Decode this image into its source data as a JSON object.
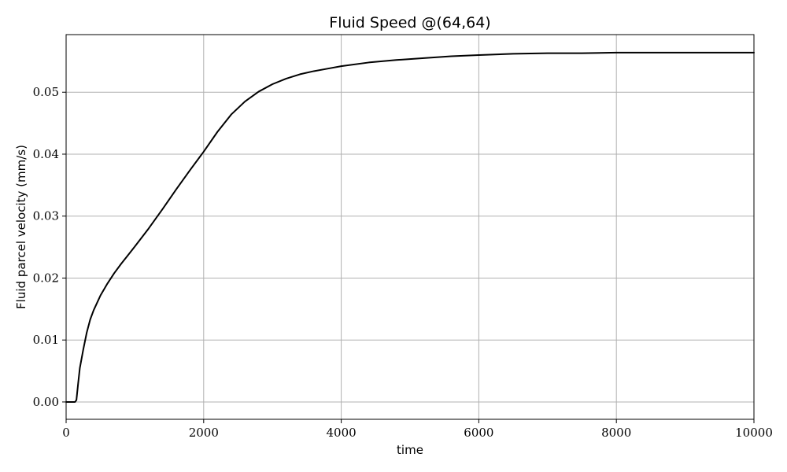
{
  "chart_data": {
    "type": "line",
    "title": "Fluid Speed @(64,64)",
    "xlabel": "time",
    "ylabel": "Fluid parcel velocity (mm/s)",
    "xlim": [
      0,
      10000
    ],
    "ylim": [
      -0.0028,
      0.0593
    ],
    "grid": true,
    "xticks": [
      0,
      2000,
      4000,
      6000,
      8000,
      10000
    ],
    "xtick_labels": [
      "0",
      "2000",
      "4000",
      "6000",
      "8000",
      "10000"
    ],
    "yticks": [
      0.0,
      0.01,
      0.02,
      0.03,
      0.04,
      0.05
    ],
    "ytick_labels": [
      "0.00",
      "0.01",
      "0.02",
      "0.03",
      "0.04",
      "0.05"
    ],
    "series": [
      {
        "color": "#000000",
        "x": [
          0,
          100,
          130,
          150,
          175,
          200,
          250,
          300,
          350,
          400,
          500,
          600,
          700,
          800,
          900,
          1000,
          1200,
          1400,
          1600,
          1800,
          2000,
          2200,
          2400,
          2600,
          2800,
          3000,
          3200,
          3400,
          3600,
          3800,
          4000,
          4400,
          4800,
          5200,
          5600,
          6000,
          6500,
          7000,
          7500,
          8000,
          8500,
          9000,
          9500,
          10000
        ],
        "y": [
          0.0,
          0.0,
          0.0,
          0.0003,
          0.003,
          0.0055,
          0.0085,
          0.0112,
          0.0133,
          0.0148,
          0.0172,
          0.0191,
          0.0208,
          0.0223,
          0.0237,
          0.0251,
          0.028,
          0.0311,
          0.0343,
          0.0374,
          0.0404,
          0.0436,
          0.0464,
          0.0485,
          0.0501,
          0.0513,
          0.0522,
          0.0529,
          0.0534,
          0.0538,
          0.0542,
          0.0548,
          0.0552,
          0.0555,
          0.0558,
          0.056,
          0.0562,
          0.0563,
          0.0563,
          0.0564,
          0.0564,
          0.0564,
          0.0564,
          0.0564
        ]
      }
    ]
  }
}
